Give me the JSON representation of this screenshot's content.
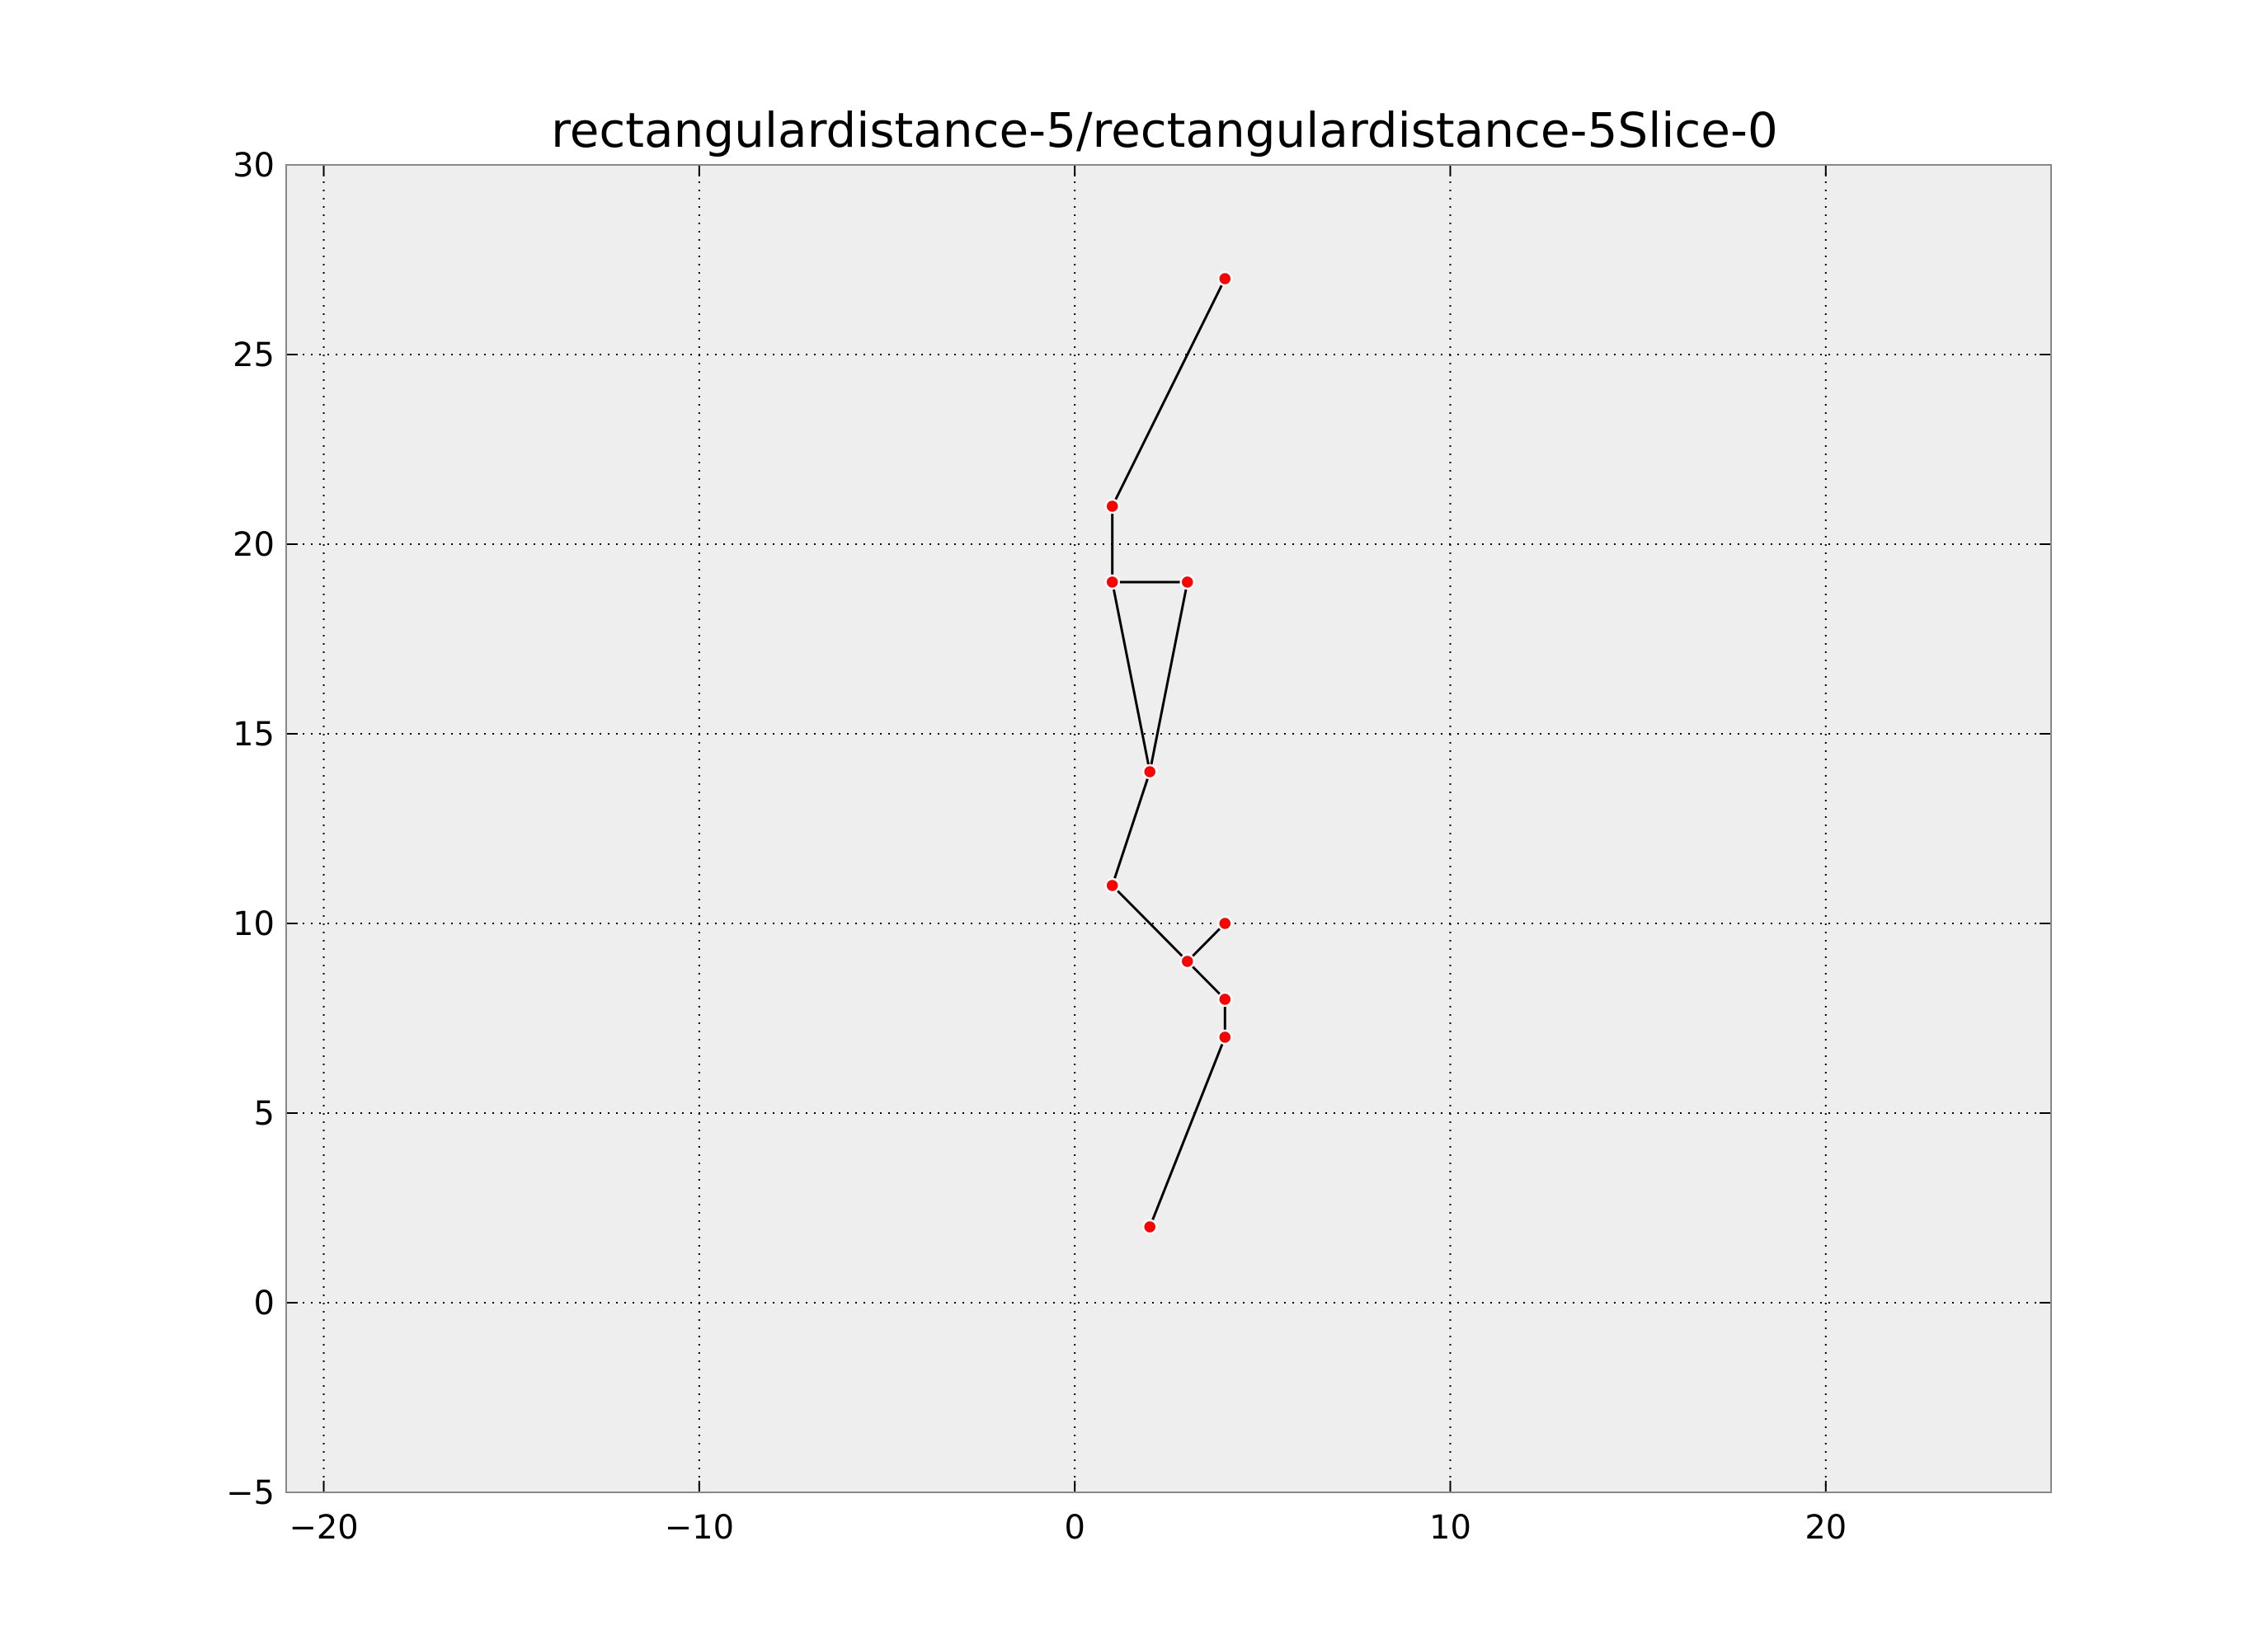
{
  "chart_data": {
    "type": "scatter",
    "title": "rectangulardistance-5/rectangulardistance-5Slice-0",
    "xlabel": "",
    "ylabel": "",
    "xlim": [
      -21,
      26
    ],
    "ylim": [
      -5,
      30
    ],
    "xticks": [
      -20,
      -10,
      0,
      10,
      20
    ],
    "xtick_labels": [
      "−20",
      "−10",
      "0",
      "10",
      "20"
    ],
    "yticks": [
      -5,
      0,
      5,
      10,
      15,
      20,
      25,
      30
    ],
    "ytick_labels": [
      "−5",
      "0",
      "5",
      "10",
      "15",
      "20",
      "25",
      "30"
    ],
    "grid": true,
    "points": [
      {
        "x": 4,
        "y": 27
      },
      {
        "x": 1,
        "y": 21
      },
      {
        "x": 1,
        "y": 19
      },
      {
        "x": 3,
        "y": 19
      },
      {
        "x": 2,
        "y": 14
      },
      {
        "x": 1,
        "y": 11
      },
      {
        "x": 4,
        "y": 10
      },
      {
        "x": 3,
        "y": 9
      },
      {
        "x": 4,
        "y": 8
      },
      {
        "x": 4,
        "y": 7
      },
      {
        "x": 2,
        "y": 2
      }
    ],
    "edges": [
      [
        [
          4,
          27
        ],
        [
          1,
          21
        ]
      ],
      [
        [
          1,
          21
        ],
        [
          1,
          19
        ]
      ],
      [
        [
          1,
          19
        ],
        [
          3,
          19
        ]
      ],
      [
        [
          1,
          19
        ],
        [
          2,
          14
        ]
      ],
      [
        [
          3,
          19
        ],
        [
          2,
          14
        ]
      ],
      [
        [
          2,
          14
        ],
        [
          1,
          11
        ]
      ],
      [
        [
          1,
          11
        ],
        [
          3,
          9
        ]
      ],
      [
        [
          3,
          9
        ],
        [
          4,
          10
        ]
      ],
      [
        [
          3,
          9
        ],
        [
          4,
          8
        ]
      ],
      [
        [
          4,
          8
        ],
        [
          4,
          7
        ]
      ],
      [
        [
          4,
          7
        ],
        [
          2,
          2
        ]
      ]
    ],
    "colors": {
      "plot_background": "#eeeeee",
      "point": "#ff0000",
      "edge": "#000000"
    }
  }
}
